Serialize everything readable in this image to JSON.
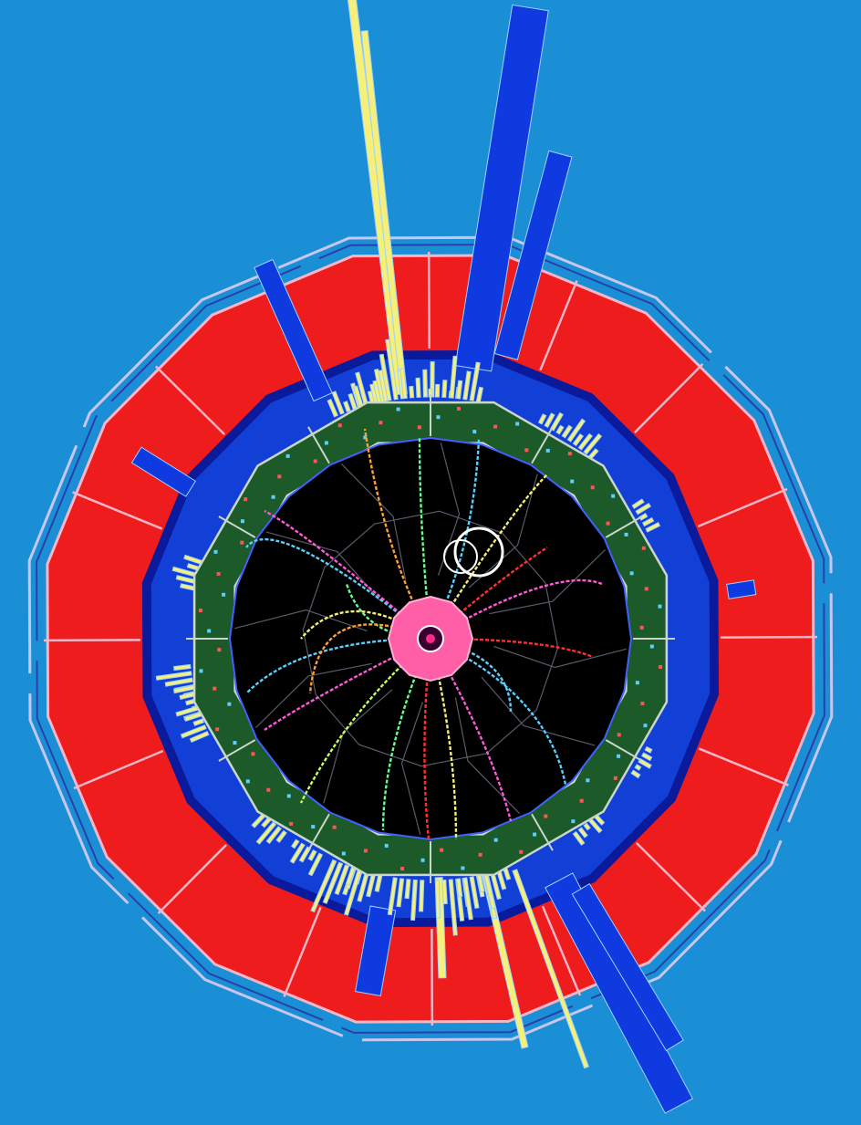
{
  "image": {
    "subject": "particle-collision-event-display",
    "colors": {
      "background": "#1b8fd6",
      "outer_wire": "#c9c6f2",
      "muon_ring": "#ee1c1c",
      "muon_ring_stroke": "#f6b6c8",
      "hcal_ring": "#1240d6",
      "hcal_dark": "#0a1a9a",
      "ecal_ring": "#1c5a2a",
      "ecal_stroke": "#c9d6c9",
      "tracker": "#000000",
      "beam_pipe": "#ff5fa6",
      "energy_tower_yellow": "#f4f07a",
      "energy_tower_blue": "#0f3ae0",
      "track_colors": [
        "#f4f07a",
        "#ffa033",
        "#ff5ad8",
        "#5ad0ff",
        "#69ff8a",
        "#ff3030",
        "#c8ff5a",
        "#b58cff"
      ]
    }
  }
}
